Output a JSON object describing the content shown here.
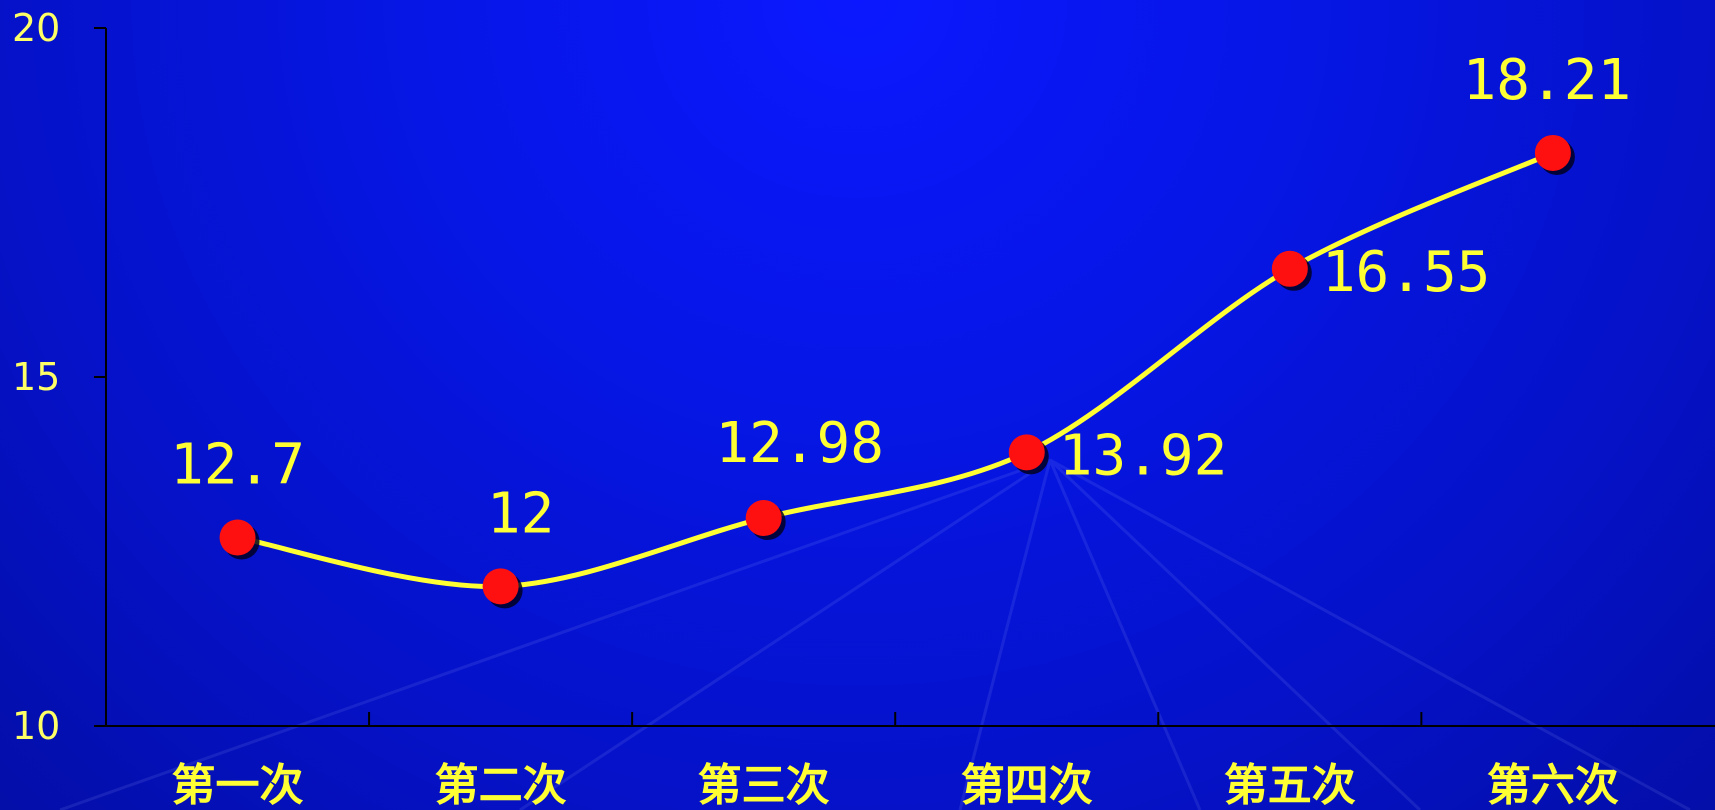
{
  "chart_data": {
    "type": "line",
    "title": "",
    "xlabel": "",
    "ylabel": "",
    "categories": [
      "第一次",
      "第二次",
      "第三次",
      "第四次",
      "第五次",
      "第六次"
    ],
    "series": [
      {
        "values": [
          12.7,
          12,
          12.98,
          13.92,
          16.55,
          18.21
        ]
      }
    ],
    "data_labels": [
      "12.7",
      "12",
      "12.98",
      "13.92",
      "16.55",
      "18.21"
    ],
    "ylim": [
      10,
      20
    ],
    "yticks": [
      10,
      15,
      20
    ],
    "ytick_labels": [
      "10",
      "15",
      "20"
    ],
    "grid": false,
    "legend": "none",
    "line_style": "smooth",
    "colors": {
      "background": "#0616e6",
      "line": "#ffff33",
      "marker": "#ff1010",
      "axis": "#000000",
      "text": "#ffff33"
    }
  }
}
